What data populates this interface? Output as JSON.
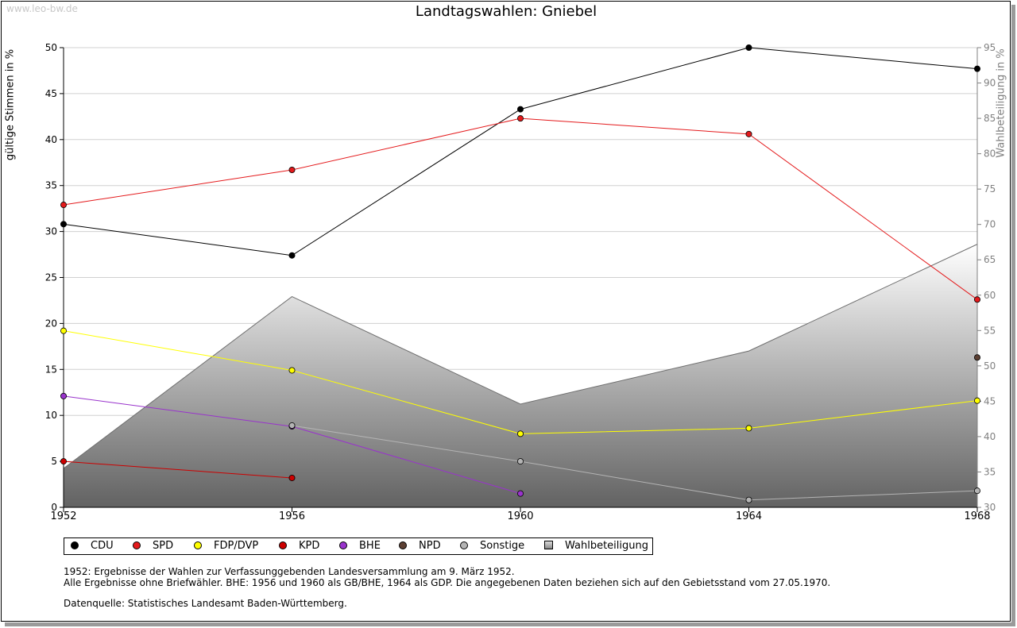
{
  "watermark": "www.leo-bw.de",
  "chart_data": {
    "type": "line",
    "title": "Landtagswahlen: Gniebel",
    "ylabel": "gültige Stimmen in %",
    "ylabel_right": "Wahlbeteiligung in %",
    "x": [
      1952,
      1956,
      1960,
      1964,
      1968
    ],
    "ylim": [
      0,
      50
    ],
    "yticks": [
      0,
      5,
      10,
      15,
      20,
      25,
      30,
      35,
      40,
      45,
      50
    ],
    "ylim_right": [
      30,
      95
    ],
    "yticks_right": [
      30,
      35,
      40,
      45,
      50,
      55,
      60,
      65,
      70,
      75,
      80,
      85,
      90,
      95
    ],
    "grid": true,
    "legend_position": "bottom-left",
    "series": [
      {
        "name": "CDU",
        "color": "#000000",
        "values": [
          30.8,
          27.4,
          43.3,
          50.0,
          47.7
        ]
      },
      {
        "name": "SPD",
        "color": "#e41a1c",
        "values": [
          32.9,
          36.7,
          42.3,
          40.6,
          22.6
        ]
      },
      {
        "name": "FDP/DVP",
        "color": "#ffff00",
        "values": [
          19.2,
          14.9,
          8.0,
          8.6,
          11.6
        ]
      },
      {
        "name": "KPD",
        "color": "#cc0000",
        "values": [
          5.0,
          3.2,
          null,
          null,
          null
        ]
      },
      {
        "name": "BHE",
        "color": "#9933cc",
        "values": [
          12.1,
          8.8,
          1.5,
          null,
          null
        ]
      },
      {
        "name": "NPD",
        "color": "#5c4033",
        "values": [
          null,
          null,
          null,
          null,
          16.3
        ]
      },
      {
        "name": "Sonstige",
        "color": "#b4b4b4",
        "values": [
          null,
          8.9,
          5.0,
          0.8,
          1.8
        ]
      }
    ],
    "area_series": {
      "name": "Wahlbeteiligung",
      "axis": "right",
      "values": [
        35.5,
        59.8,
        44.6,
        52.1,
        67.2
      ]
    }
  },
  "notes": [
    "1952: Ergebnisse der Wahlen zur Verfassunggebenden Landesversammlung am 9. März 1952.",
    "Alle Ergebnisse ohne Briefwähler. BHE: 1956 und 1960 als GB/BHE, 1964 als GDP. Die angegebenen Daten beziehen sich auf den Gebietsstand vom 27.05.1970."
  ],
  "source": "Datenquelle: Statistisches Landesamt Baden-Württemberg."
}
